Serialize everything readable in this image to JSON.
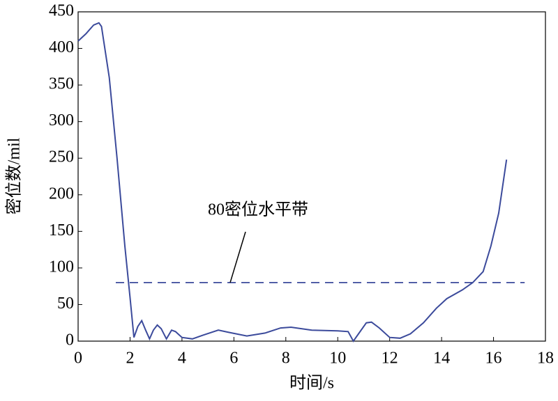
{
  "chart_data": {
    "type": "line",
    "x_label": "时间/s",
    "y_label": "密位数/mil",
    "x": [
      0,
      0.3,
      0.6,
      0.8,
      0.9,
      1.2,
      1.5,
      1.8,
      2.0,
      2.15,
      2.3,
      2.45,
      2.6,
      2.75,
      2.9,
      3.05,
      3.2,
      3.4,
      3.6,
      3.75,
      4.0,
      4.4,
      4.8,
      5.4,
      5.8,
      6.5,
      7.2,
      7.8,
      8.2,
      9.0,
      10.0,
      10.4,
      10.6,
      10.8,
      11.1,
      11.3,
      11.6,
      12.0,
      12.4,
      12.8,
      13.3,
      13.8,
      14.2,
      14.8,
      15.2,
      15.6,
      15.9,
      16.2,
      16.5
    ],
    "series": [
      {
        "color": "#3b4a9b",
        "values": [
          410,
          420,
          432,
          435,
          430,
          360,
          250,
          130,
          60,
          5,
          20,
          28,
          15,
          3,
          15,
          22,
          17,
          3,
          15,
          13,
          5,
          3,
          8,
          15,
          12,
          7,
          11,
          18,
          19,
          15,
          14,
          13,
          0,
          10,
          25,
          26,
          18,
          5,
          4,
          10,
          25,
          45,
          58,
          70,
          80,
          95,
          130,
          175,
          248
        ]
      }
    ],
    "reference_line": {
      "value": 80,
      "color": "#3b4a9b",
      "label": "80密位水平带"
    },
    "xlim": [
      0,
      18
    ],
    "xticks": [
      0,
      2,
      4,
      6,
      8,
      10,
      12,
      14,
      16,
      18
    ],
    "ylim": [
      0,
      450
    ],
    "yticks": [
      0,
      50,
      100,
      150,
      200,
      250,
      300,
      350,
      400,
      450
    ]
  }
}
